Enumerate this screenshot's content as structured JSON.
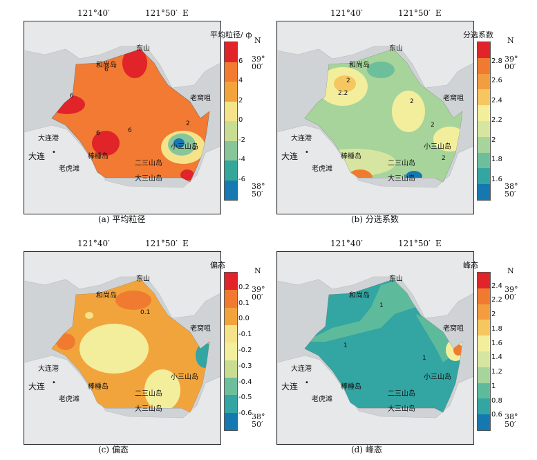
{
  "lon_labels": [
    "121°40′",
    "121°50′",
    "E"
  ],
  "north": "N",
  "lat_top": [
    "39°",
    "00′"
  ],
  "lat_bottom": [
    "38°",
    "50′"
  ],
  "places": {
    "dongshan": "东山",
    "heshangdao": "和尚岛",
    "laowozui": "老窝咀",
    "xiaosanshandao": "小三山岛",
    "dalian_gang": "大连港",
    "dalian": "大连",
    "bangchuidao": "棒棰岛",
    "erssanshandao": "二三山岛",
    "laohutan": "老虎滩",
    "dasanshandao": "大三山岛"
  },
  "panels": [
    {
      "caption": "(a) 平均粒径",
      "legend_title": "平均粒径/ ф",
      "ticks": [
        "6",
        "4",
        "2",
        "0",
        "-2",
        "-4",
        "-6"
      ],
      "colors": [
        "#e0242a",
        "#f27a32",
        "#f2a43c",
        "#f5e38a",
        "#c8dd92",
        "#88c59a",
        "#35a79a",
        "#1778b2"
      ],
      "contour_labels": [
        "6",
        "6",
        "6",
        "6",
        "2",
        "2"
      ]
    },
    {
      "caption": "(b) 分选系数",
      "legend_title": "分选系数",
      "ticks": [
        "2.8",
        "2.6",
        "2.4",
        "2.2",
        "2",
        "1.8",
        "1.6"
      ],
      "colors": [
        "#e0242a",
        "#f07a30",
        "#f29d40",
        "#f6c660",
        "#f3ee9c",
        "#d6e6a0",
        "#a6d49a",
        "#6dbf9c",
        "#33a5a3",
        "#1678b0"
      ],
      "contour_labels": [
        "2",
        "2.2",
        "2",
        "2",
        "2"
      ]
    },
    {
      "caption": "(c) 偏态",
      "legend_title": "偏态",
      "ticks": [
        "0.2",
        "0.1",
        "0.0",
        "-0.1",
        "-0.2",
        "-0.3",
        "-0.4",
        "-0.5",
        "-0.6"
      ],
      "colors": [
        "#e0242a",
        "#f07a30",
        "#f2a43c",
        "#f5e38a",
        "#f3ee9c",
        "#c8dd92",
        "#6dbf9c",
        "#33a5a3",
        "#1678b0"
      ],
      "contour_labels": [
        "0.1"
      ]
    },
    {
      "caption": "(d) 峰态",
      "legend_title": "峰态",
      "ticks": [
        "2.4",
        "2.2",
        "2",
        "1.8",
        "1.6",
        "1.4",
        "1.2",
        "1",
        "0.8",
        "0.6"
      ],
      "colors": [
        "#e0242a",
        "#f07a30",
        "#f29d40",
        "#f6c660",
        "#f3ee9c",
        "#d6e6a0",
        "#a6d49a",
        "#5dbb9c",
        "#33a5a3",
        "#1678b0"
      ],
      "contour_labels": [
        "1",
        "1",
        "1"
      ]
    }
  ]
}
